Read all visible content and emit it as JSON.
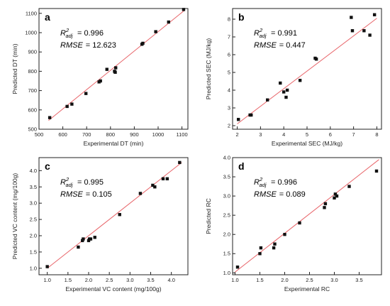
{
  "colors": {
    "fit_line": "#e8656a",
    "points": "#111111",
    "axis": "#222222"
  },
  "chart_data": [
    {
      "type": "scatter",
      "panel": "a",
      "xlabel": "Experimental DT (min)",
      "ylabel": "Predicted DT (min)",
      "xlim": [
        500,
        1125
      ],
      "ylim": [
        500,
        1125
      ],
      "xticks": [
        "500",
        "600",
        "700",
        "800",
        "900",
        "1000",
        "1100"
      ],
      "yticks": [
        "500",
        "600",
        "700",
        "800",
        "900",
        "1000",
        "1100"
      ],
      "r2_label": "R",
      "r2_sup": "2",
      "r2_sub": "adj",
      "r2_value": "= 0.996",
      "rmse_label": "RMSE",
      "rmse_value": "= 12.623",
      "fit_line": [
        [
          540,
          545
        ],
        [
          1110,
          1115
        ]
      ],
      "points": [
        [
          545,
          560
        ],
        [
          618,
          618
        ],
        [
          638,
          630
        ],
        [
          697,
          685
        ],
        [
          752,
          745
        ],
        [
          758,
          750
        ],
        [
          785,
          810
        ],
        [
          817,
          800
        ],
        [
          820,
          795
        ],
        [
          822,
          818
        ],
        [
          932,
          940
        ],
        [
          936,
          945
        ],
        [
          990,
          1005
        ],
        [
          1044,
          1055
        ],
        [
          1107,
          1120
        ]
      ]
    },
    {
      "type": "scatter",
      "panel": "b",
      "xlabel": "Experimental SEC (MJ/kg)",
      "ylabel": "Predicted SEC (MJ/kg)",
      "xlim": [
        1.8,
        8.2
      ],
      "ylim": [
        1.8,
        8.6
      ],
      "xticks": [
        "2",
        "3",
        "4",
        "5",
        "6",
        "7",
        "8"
      ],
      "yticks": [
        "2",
        "3",
        "4",
        "5",
        "6",
        "7",
        "8"
      ],
      "r2_label": "R",
      "r2_sup": "2",
      "r2_sub": "adj",
      "r2_value": "= 0.991",
      "rmse_label": "RMSE",
      "rmse_value": "= 0.447",
      "fit_line": [
        [
          2.0,
          2.1
        ],
        [
          8.0,
          8.05
        ]
      ],
      "points": [
        [
          2.05,
          2.35
        ],
        [
          2.55,
          2.6
        ],
        [
          2.6,
          2.6
        ],
        [
          3.3,
          3.45
        ],
        [
          3.85,
          4.4
        ],
        [
          4.0,
          3.9
        ],
        [
          4.1,
          3.6
        ],
        [
          4.15,
          4.0
        ],
        [
          4.7,
          4.55
        ],
        [
          5.35,
          5.8
        ],
        [
          5.4,
          5.75
        ],
        [
          6.9,
          8.1
        ],
        [
          6.95,
          7.35
        ],
        [
          7.45,
          7.35
        ],
        [
          7.7,
          7.1
        ],
        [
          7.9,
          8.25
        ]
      ]
    },
    {
      "type": "scatter",
      "panel": "c",
      "xlabel": "Experimental VC content (mg/100g)",
      "ylabel": "Predicted VC content (mg/100g)",
      "xlim": [
        0.8,
        4.4
      ],
      "ylim": [
        0.8,
        4.4
      ],
      "xticks": [
        "1.0",
        "1.5",
        "2.0",
        "2.5",
        "3.0",
        "3.5",
        "4.0"
      ],
      "yticks": [
        "1.0",
        "1.5",
        "2.0",
        "2.5",
        "3.0",
        "3.5",
        "4.0"
      ],
      "r2_label": "R",
      "r2_sup": "2",
      "r2_sub": "adj",
      "r2_value": "= 0.995",
      "rmse_label": "RMSE",
      "rmse_value": "= 0.105",
      "fit_line": [
        [
          1.0,
          1.0
        ],
        [
          4.25,
          4.25
        ]
      ],
      "points": [
        [
          1.0,
          1.05
        ],
        [
          1.75,
          1.65
        ],
        [
          1.85,
          1.85
        ],
        [
          1.87,
          1.9
        ],
        [
          2.0,
          1.85
        ],
        [
          2.02,
          1.9
        ],
        [
          2.05,
          1.9
        ],
        [
          2.15,
          1.95
        ],
        [
          2.75,
          2.65
        ],
        [
          3.25,
          3.3
        ],
        [
          3.55,
          3.55
        ],
        [
          3.6,
          3.5
        ],
        [
          3.8,
          3.75
        ],
        [
          3.9,
          3.75
        ],
        [
          4.2,
          4.25
        ]
      ]
    },
    {
      "type": "scatter",
      "panel": "d",
      "xlabel": "Experimental RC",
      "ylabel": "Predicted RC",
      "xlim": [
        0.95,
        3.95
      ],
      "ylim": [
        0.95,
        4.0
      ],
      "xticks": [
        "1.0",
        "1.5",
        "2.0",
        "2.5",
        "3.0",
        "3.5"
      ],
      "yticks": [
        "1.0",
        "1.5",
        "2.0",
        "2.5",
        "3.0",
        "3.5",
        "4.0"
      ],
      "r2_label": "R",
      "r2_sup": "2",
      "r2_sub": "adj",
      "r2_value": "= 0.996",
      "rmse_label": "RMSE",
      "rmse_value": "= 0.089",
      "fit_line": [
        [
          1.0,
          1.02
        ],
        [
          3.9,
          3.95
        ]
      ],
      "points": [
        [
          1.05,
          1.15
        ],
        [
          1.5,
          1.5
        ],
        [
          1.52,
          1.65
        ],
        [
          1.78,
          1.65
        ],
        [
          1.8,
          1.75
        ],
        [
          2.0,
          2.0
        ],
        [
          2.3,
          2.3
        ],
        [
          2.8,
          2.7
        ],
        [
          2.82,
          2.8
        ],
        [
          3.0,
          2.95
        ],
        [
          3.02,
          3.05
        ],
        [
          3.05,
          3.0
        ],
        [
          3.3,
          3.25
        ],
        [
          3.85,
          3.65
        ]
      ]
    }
  ]
}
